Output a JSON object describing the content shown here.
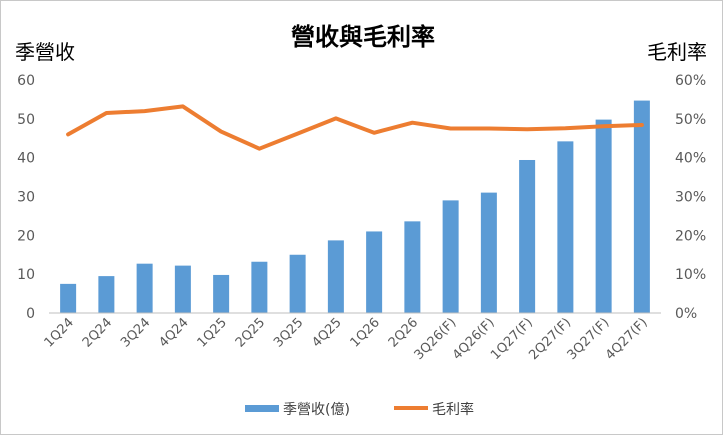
{
  "chart_data": {
    "type": "bar",
    "title": "營收與毛利率",
    "ylabel_left": "季營收",
    "ylabel_right": "毛利率",
    "categories": [
      "1Q24",
      "2Q24",
      "3Q24",
      "4Q24",
      "1Q25",
      "2Q25",
      "3Q25",
      "4Q25",
      "1Q26",
      "2Q26",
      "3Q26(F)",
      "4Q26(F)",
      "1Q27(F)",
      "2Q27(F)",
      "3Q27(F)",
      "4Q27(F)"
    ],
    "series": [
      {
        "name": "季營收(億)",
        "type": "bar",
        "axis": "left",
        "color": "#5b9bd5",
        "values": [
          7.5,
          9.5,
          12.7,
          12.2,
          9.8,
          13.2,
          15.0,
          18.7,
          21.0,
          23.6,
          29.0,
          31.0,
          39.4,
          44.2,
          49.8,
          54.7
        ]
      },
      {
        "name": "毛利率",
        "type": "line",
        "axis": "right",
        "color": "#ed7d31",
        "values": [
          46.0,
          51.5,
          52.0,
          53.2,
          46.7,
          42.3,
          46.2,
          50.1,
          46.4,
          49.0,
          47.5,
          47.5,
          47.3,
          47.6,
          48.1,
          48.4
        ]
      }
    ],
    "ylim_left": [
      0,
      60
    ],
    "yticks_left": [
      "0",
      "10",
      "20",
      "30",
      "40",
      "50",
      "60"
    ],
    "ylim_right": [
      0,
      60
    ],
    "yticks_right": [
      "0%",
      "10%",
      "20%",
      "30%",
      "40%",
      "50%",
      "60%"
    ],
    "grid": false,
    "legend": "bottom"
  }
}
